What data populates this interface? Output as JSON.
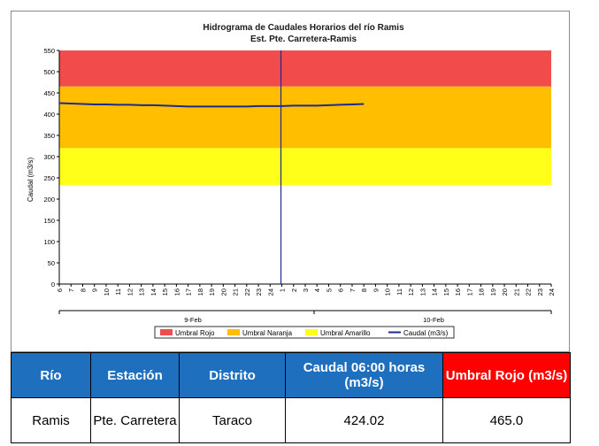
{
  "chart_data": {
    "type": "line",
    "title": "Hidrograma de Caudales Horarios del río Ramis",
    "subtitle": "Est. Pte. Carretera-Ramis",
    "ylabel": "Caudal  (m3/s)",
    "xlabel": "",
    "ylim": [
      0,
      550
    ],
    "y_ticks": [
      0,
      50,
      100,
      150,
      200,
      250,
      300,
      350,
      400,
      450,
      500,
      550
    ],
    "x_tick_labels": [
      "6",
      "7",
      "8",
      "9",
      "10",
      "11",
      "12",
      "13",
      "14",
      "15",
      "16",
      "17",
      "18",
      "19",
      "20",
      "21",
      "22",
      "23",
      "24",
      "1",
      "2",
      "3",
      "4",
      "5",
      "6",
      "7",
      "8",
      "9",
      "10",
      "11",
      "12",
      "13",
      "14",
      "15",
      "16",
      "17",
      "18",
      "19",
      "20",
      "21",
      "22",
      "23",
      "24"
    ],
    "day_labels": [
      "9-Feb",
      "10-Feb"
    ],
    "bands": [
      {
        "name": "Umbral Rojo",
        "from": 465,
        "to": 550,
        "color": "#f24b4b"
      },
      {
        "name": "Umbral Naranja",
        "from": 320,
        "to": 465,
        "color": "#ffbf00"
      },
      {
        "name": "Umbral Amarillo",
        "from": 233,
        "to": 320,
        "color": "#ffff1a"
      }
    ],
    "series": [
      {
        "name": "Caudal (m3/s)",
        "color": "#1f2a8c",
        "values": [
          426,
          425,
          424,
          423,
          423,
          422,
          422,
          421,
          421,
          420,
          419,
          418,
          418,
          418,
          418,
          418,
          418,
          419,
          419,
          419,
          420,
          420,
          420,
          421,
          422,
          423,
          424.02
        ]
      }
    ],
    "vertical_marker_index": 19,
    "grid": false,
    "legend_position": "bottom"
  },
  "table": {
    "headers": [
      "Río",
      "Estación",
      "Distrito",
      "Caudal 06:00 horas (m3/s)",
      "Umbral Rojo (m3/s)"
    ],
    "row": [
      "Ramis",
      "Pte. Carretera",
      "Taraco",
      "424.02",
      "465.0"
    ]
  }
}
